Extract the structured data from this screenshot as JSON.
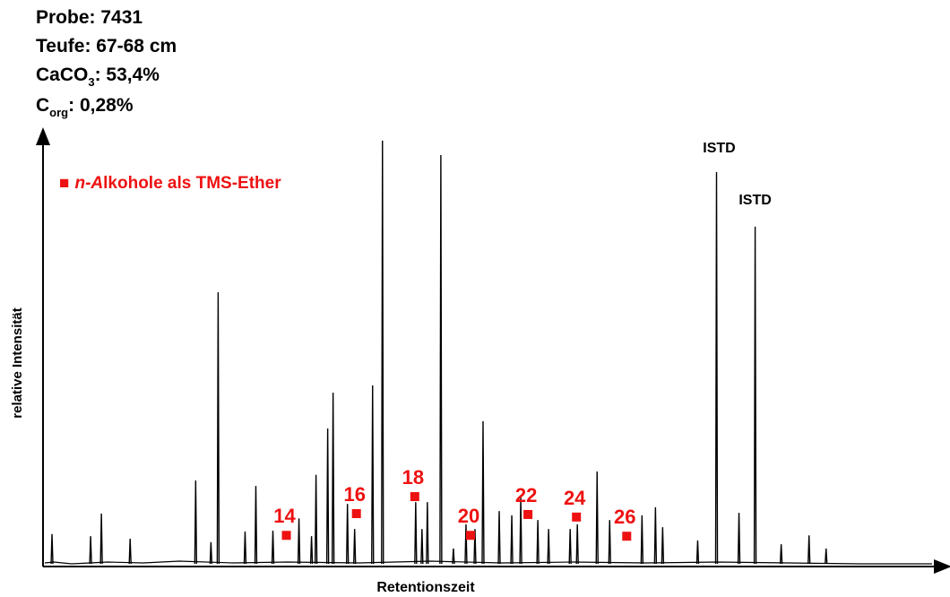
{
  "chart_data": {
    "type": "line",
    "info": [
      [
        "Probe: 7431"
      ],
      [
        "Teufe: 67-68 cm"
      ],
      [
        "CaCO",
        "3",
        ": 53,4%"
      ],
      [
        "C",
        "org",
        ": 0,28%"
      ]
    ],
    "legend": {
      "marker": "■",
      "text": [
        "n-A",
        "lkohole als TMS-Ether"
      ],
      "color": "#ee1111"
    },
    "xlabel": "Retentionszeit",
    "ylabel": "relative Intensität",
    "xlim": [
      0,
      100
    ],
    "ylim": [
      0,
      100
    ],
    "color": "#000000",
    "x": [
      1.0,
      5.3,
      6.5,
      9.7,
      17.0,
      18.7,
      19.5,
      22.5,
      23.7,
      25.6,
      28.5,
      29.9,
      30.4,
      31.7,
      32.3,
      33.9,
      34.7,
      36.7,
      37.8,
      41.5,
      42.2,
      42.8,
      44.3,
      45.7,
      47.1,
      48.1,
      49.0,
      50.8,
      52.2,
      53.2,
      55.1,
      56.3,
      58.7,
      59.5,
      61.7,
      63.1,
      66.7,
      68.2,
      69.0,
      72.9,
      75.0,
      77.5,
      79.3,
      82.2,
      85.3,
      87.2
    ],
    "values": [
      7.2,
      6.7,
      12.0,
      6.1,
      19.8,
      5.3,
      64.0,
      7.8,
      18.5,
      8.0,
      10.9,
      6.7,
      21.1,
      32.0,
      40.4,
      14.3,
      8.4,
      42.1,
      99.6,
      14.7,
      8.4,
      14.7,
      96.2,
      3.8,
      9.5,
      8.4,
      33.7,
      12.6,
      11.6,
      15.8,
      10.5,
      8.4,
      8.4,
      9.5,
      21.9,
      10.5,
      11.6,
      13.5,
      8.8,
      5.7,
      92.2,
      12.2,
      79.4,
      4.8,
      6.9,
      3.8
    ],
    "markers": [
      {
        "label": "14",
        "x": 27.1,
        "y": 6.9
      },
      {
        "label": "16",
        "x": 34.9,
        "y": 12.0
      },
      {
        "label": "18",
        "x": 41.4,
        "y": 16.0
      },
      {
        "label": "20",
        "x": 47.6,
        "y": 6.9
      },
      {
        "label": "22",
        "x": 54.0,
        "y": 11.8
      },
      {
        "label": "24",
        "x": 59.4,
        "y": 11.2
      },
      {
        "label": "26",
        "x": 65.0,
        "y": 6.7
      }
    ],
    "annotations": [
      {
        "text": "ISTD",
        "x": 75.3,
        "y": 96.8
      },
      {
        "text": "ISTD",
        "x": 79.3,
        "y": 84.6
      }
    ]
  }
}
